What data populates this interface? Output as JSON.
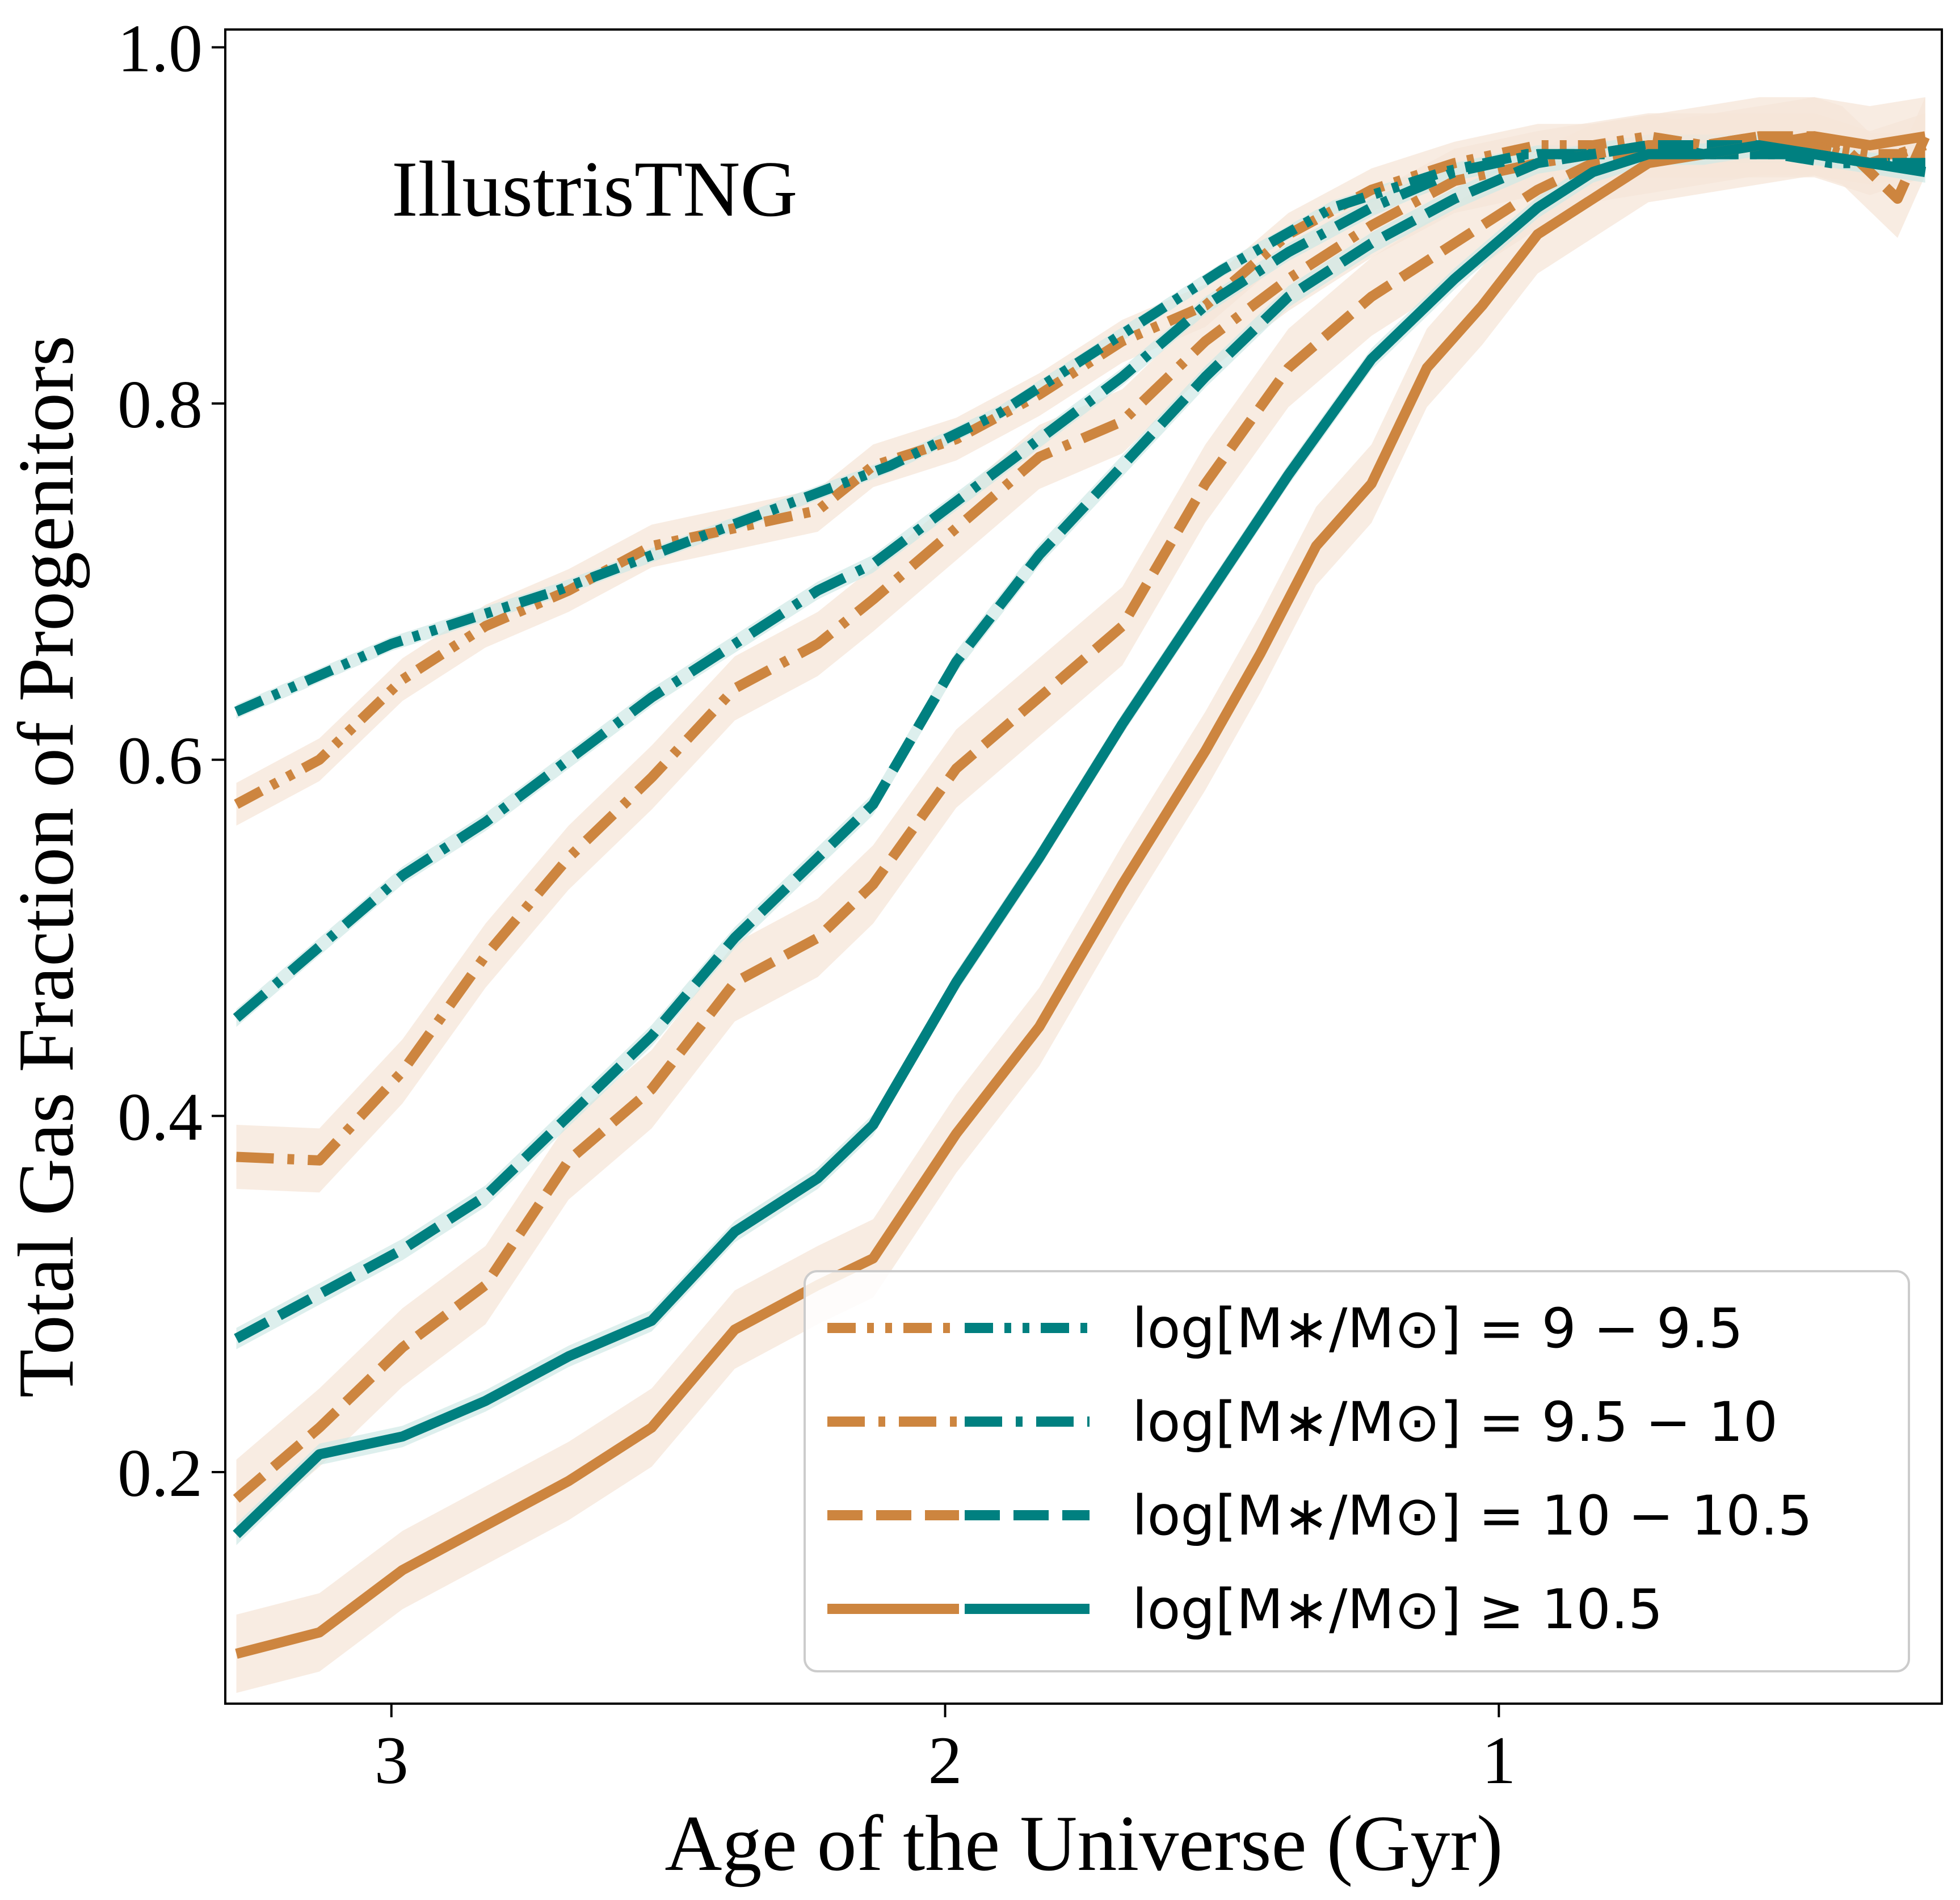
{
  "chart_data": {
    "type": "line",
    "title": "",
    "annotation": "IllustrisTNG",
    "xlabel": "Age of the Universe (Gyr)",
    "ylabel": "Total Gas Fraction of Progenitors",
    "xlim": [
      3.3,
      0.2
    ],
    "ylim": [
      0.07,
      1.01
    ],
    "xticks": [
      3,
      2,
      1
    ],
    "xtick_labels": [
      "3",
      "2",
      "1"
    ],
    "yticks": [
      0.2,
      0.4,
      0.6,
      0.8,
      1.0
    ],
    "ytick_labels": [
      "0.2",
      "0.4",
      "0.6",
      "0.8",
      "1.0"
    ],
    "colors": {
      "orange": "#cd853f",
      "teal": "#008080",
      "band": "#f5e6d8",
      "teal_band": "#cfe8e6"
    },
    "legend": {
      "position": "lower right",
      "entries": [
        {
          "label": "log[M∗/M⊙] = 9 − 9.5",
          "style": "dashdotdot"
        },
        {
          "label": "log[M∗/M⊙] = 9.5 − 10",
          "style": "dashdot"
        },
        {
          "label": "log[M∗/M⊙] = 10 − 10.5",
          "style": "dashed"
        },
        {
          "label": "log[M∗/M⊙] ≥ 10.5",
          "style": "solid"
        }
      ]
    },
    "series": [
      {
        "name": "9-9.5 (orange)",
        "color": "orange",
        "style": "dashdotdot",
        "band": 0.012,
        "x": [
          3.28,
          3.13,
          2.98,
          2.83,
          2.68,
          2.53,
          2.38,
          2.23,
          2.13,
          1.98,
          1.83,
          1.68,
          1.53,
          1.38,
          1.23,
          1.08,
          0.93,
          0.83,
          0.73,
          0.63,
          0.53,
          0.43,
          0.33,
          0.23
        ],
        "y": [
          0.575,
          0.6,
          0.645,
          0.675,
          0.695,
          0.72,
          0.73,
          0.74,
          0.765,
          0.78,
          0.805,
          0.835,
          0.855,
          0.895,
          0.92,
          0.935,
          0.945,
          0.945,
          0.95,
          0.945,
          0.95,
          0.945,
          0.94,
          0.94
        ]
      },
      {
        "name": "9-9.5 (teal)",
        "color": "teal",
        "style": "dashdotdot",
        "band": 0.004,
        "x": [
          3.28,
          3.0,
          2.7,
          2.4,
          2.1,
          1.9,
          1.7,
          1.5,
          1.3,
          1.1,
          0.95,
          0.8,
          0.7,
          0.6,
          0.5,
          0.4,
          0.3,
          0.23
        ],
        "y": [
          0.627,
          0.665,
          0.695,
          0.73,
          0.765,
          0.795,
          0.835,
          0.875,
          0.91,
          0.93,
          0.94,
          0.94,
          0.94,
          0.94,
          0.94,
          0.935,
          0.935,
          0.935
        ]
      },
      {
        "name": "9.5-10 (orange)",
        "color": "orange",
        "style": "dashdot",
        "band": 0.018,
        "x": [
          3.28,
          3.13,
          2.98,
          2.83,
          2.68,
          2.53,
          2.38,
          2.23,
          2.13,
          1.98,
          1.83,
          1.68,
          1.53,
          1.38,
          1.23,
          1.08,
          0.93,
          0.83,
          0.73,
          0.63,
          0.53,
          0.43,
          0.33,
          0.23
        ],
        "y": [
          0.377,
          0.375,
          0.425,
          0.49,
          0.545,
          0.59,
          0.64,
          0.665,
          0.69,
          0.73,
          0.77,
          0.79,
          0.835,
          0.87,
          0.9,
          0.925,
          0.935,
          0.94,
          0.945,
          0.945,
          0.945,
          0.945,
          0.935,
          0.945
        ]
      },
      {
        "name": "9.5-10 (teal)",
        "color": "teal",
        "style": "dashdot",
        "band": 0.005,
        "x": [
          3.28,
          3.13,
          2.98,
          2.83,
          2.68,
          2.53,
          2.38,
          2.23,
          2.13,
          1.98,
          1.83,
          1.68,
          1.53,
          1.38,
          1.23,
          1.08,
          0.93,
          0.83,
          0.73,
          0.63,
          0.53,
          0.43,
          0.33,
          0.23
        ],
        "y": [
          0.455,
          0.495,
          0.535,
          0.565,
          0.6,
          0.635,
          0.665,
          0.695,
          0.71,
          0.745,
          0.78,
          0.815,
          0.855,
          0.885,
          0.91,
          0.93,
          0.94,
          0.94,
          0.945,
          0.94,
          0.94,
          0.94,
          0.935,
          0.935
        ]
      },
      {
        "name": "10-10.5 (orange)",
        "color": "orange",
        "style": "dashed",
        "band": 0.022,
        "x": [
          3.28,
          3.13,
          2.98,
          2.83,
          2.68,
          2.53,
          2.38,
          2.23,
          2.13,
          1.98,
          1.83,
          1.68,
          1.53,
          1.38,
          1.23,
          1.08,
          0.93,
          0.83,
          0.73,
          0.63,
          0.53,
          0.43,
          0.38,
          0.33,
          0.28,
          0.23
        ],
        "y": [
          0.185,
          0.225,
          0.27,
          0.305,
          0.375,
          0.415,
          0.475,
          0.5,
          0.53,
          0.595,
          0.635,
          0.675,
          0.755,
          0.82,
          0.86,
          0.89,
          0.92,
          0.935,
          0.94,
          0.945,
          0.95,
          0.95,
          0.945,
          0.93,
          0.915,
          0.95
        ]
      },
      {
        "name": "10-10.5 (teal)",
        "color": "teal",
        "style": "dashed",
        "band": 0.006,
        "x": [
          3.28,
          3.13,
          2.98,
          2.83,
          2.68,
          2.53,
          2.38,
          2.23,
          2.13,
          1.98,
          1.83,
          1.68,
          1.53,
          1.38,
          1.23,
          1.08,
          0.93,
          0.83,
          0.73,
          0.63,
          0.53,
          0.43,
          0.33,
          0.23
        ],
        "y": [
          0.275,
          0.3,
          0.325,
          0.355,
          0.4,
          0.445,
          0.5,
          0.545,
          0.575,
          0.655,
          0.715,
          0.765,
          0.815,
          0.86,
          0.89,
          0.915,
          0.935,
          0.94,
          0.945,
          0.945,
          0.945,
          0.94,
          0.935,
          0.935
        ]
      },
      {
        "name": ">=10.5 (orange)",
        "color": "orange",
        "style": "solid",
        "band": 0.022,
        "x": [
          3.28,
          3.13,
          2.98,
          2.83,
          2.68,
          2.53,
          2.38,
          2.23,
          2.13,
          1.98,
          1.83,
          1.68,
          1.53,
          1.43,
          1.33,
          1.23,
          1.13,
          1.03,
          0.93,
          0.83,
          0.73,
          0.63,
          0.53,
          0.43,
          0.33,
          0.23
        ],
        "y": [
          0.098,
          0.11,
          0.145,
          0.17,
          0.195,
          0.225,
          0.28,
          0.305,
          0.32,
          0.39,
          0.45,
          0.53,
          0.605,
          0.66,
          0.72,
          0.755,
          0.82,
          0.855,
          0.895,
          0.915,
          0.935,
          0.94,
          0.945,
          0.95,
          0.945,
          0.95
        ]
      },
      {
        "name": ">=10.5 (teal)",
        "color": "teal",
        "style": "solid",
        "band": 0.006,
        "x": [
          3.28,
          3.13,
          2.98,
          2.83,
          2.68,
          2.53,
          2.38,
          2.23,
          2.13,
          1.98,
          1.83,
          1.68,
          1.53,
          1.38,
          1.23,
          1.08,
          0.93,
          0.83,
          0.73,
          0.63,
          0.53,
          0.43,
          0.33,
          0.23
        ],
        "y": [
          0.165,
          0.21,
          0.22,
          0.24,
          0.265,
          0.285,
          0.335,
          0.365,
          0.395,
          0.475,
          0.545,
          0.62,
          0.69,
          0.76,
          0.825,
          0.87,
          0.91,
          0.93,
          0.94,
          0.94,
          0.945,
          0.94,
          0.935,
          0.93
        ]
      }
    ]
  }
}
